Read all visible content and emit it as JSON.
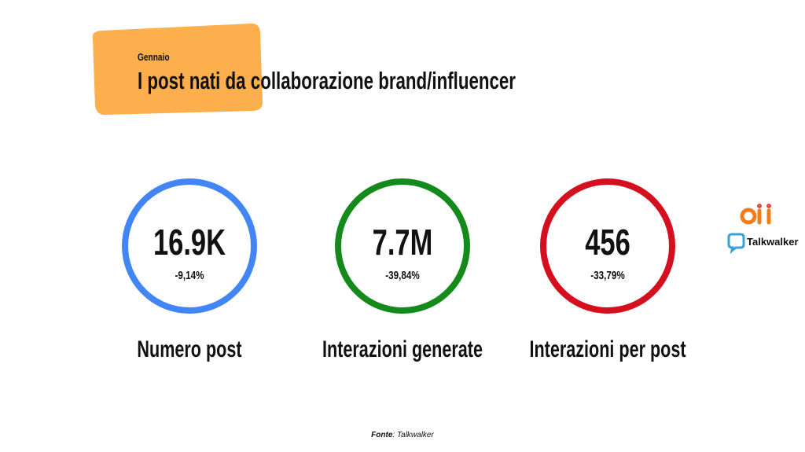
{
  "header": {
    "subtitle": "Gennaio",
    "title": "I post nati da collaborazione brand/influencer"
  },
  "metrics": [
    {
      "value": "16.9K",
      "change": "-9,14%",
      "label": "Numero post",
      "color": "#4285f4"
    },
    {
      "value": "7.7M",
      "change": "-39,84%",
      "label": "Interazioni generate",
      "color": "#138a1a"
    },
    {
      "value": "456",
      "change": "-33,79%",
      "label": "Interazioni per post",
      "color": "#d4101e"
    }
  ],
  "logos": {
    "talkwalker": "Talkwalker"
  },
  "footer": {
    "label": "Fonte",
    "source": ": Talkwalker"
  }
}
